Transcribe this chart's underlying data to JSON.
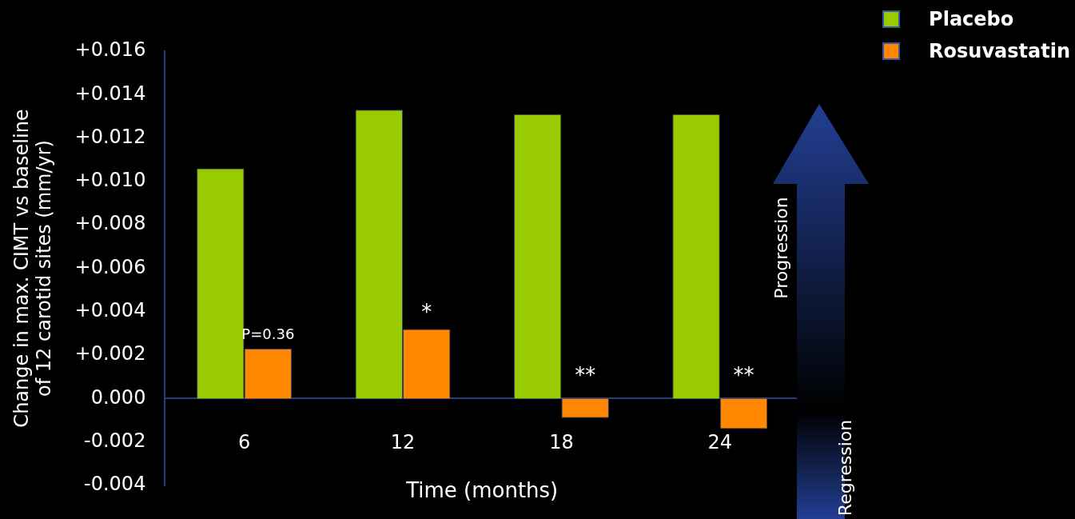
{
  "chart_data": {
    "type": "bar",
    "ylabel": "Change in max. CIMT vs baseline\nof 12 carotid sites (mm/yr)",
    "xlabel": "Time (months)",
    "categories": [
      "6",
      "12",
      "18",
      "24"
    ],
    "series": [
      {
        "name": "Placebo",
        "color": "#99cc00",
        "values": [
          0.0106,
          0.0133,
          0.0131,
          0.0131
        ]
      },
      {
        "name": "Rosuvastatin",
        "color": "#ff8800",
        "values": [
          0.0023,
          0.0032,
          -0.0009,
          -0.0014
        ]
      }
    ],
    "ylim": [
      -0.004,
      0.016
    ],
    "yticks": [
      {
        "value": -0.004,
        "label": "-0.004"
      },
      {
        "value": -0.002,
        "label": "-0.002"
      },
      {
        "value": 0,
        "label": "0.000"
      },
      {
        "value": 0.002,
        "label": "+0.002"
      },
      {
        "value": 0.004,
        "label": "+0.004"
      },
      {
        "value": 0.006,
        "label": "+0.006"
      },
      {
        "value": 0.008,
        "label": "+0.008"
      },
      {
        "value": 0.01,
        "label": "+0.010"
      },
      {
        "value": 0.012,
        "label": "+0.012"
      },
      {
        "value": 0.014,
        "label": "+0.014"
      },
      {
        "value": 0.016,
        "label": "+0.016"
      }
    ],
    "legend": "top right",
    "annotations": [
      {
        "text": "P=0.36",
        "x": "6",
        "y": 0.0023
      },
      {
        "text": "*",
        "x": "12",
        "y": 0.0032
      },
      {
        "text": "**",
        "x": "18",
        "y": 0
      },
      {
        "text": "**",
        "x": "24",
        "y": 0
      },
      "Progression",
      "Regression"
    ]
  }
}
